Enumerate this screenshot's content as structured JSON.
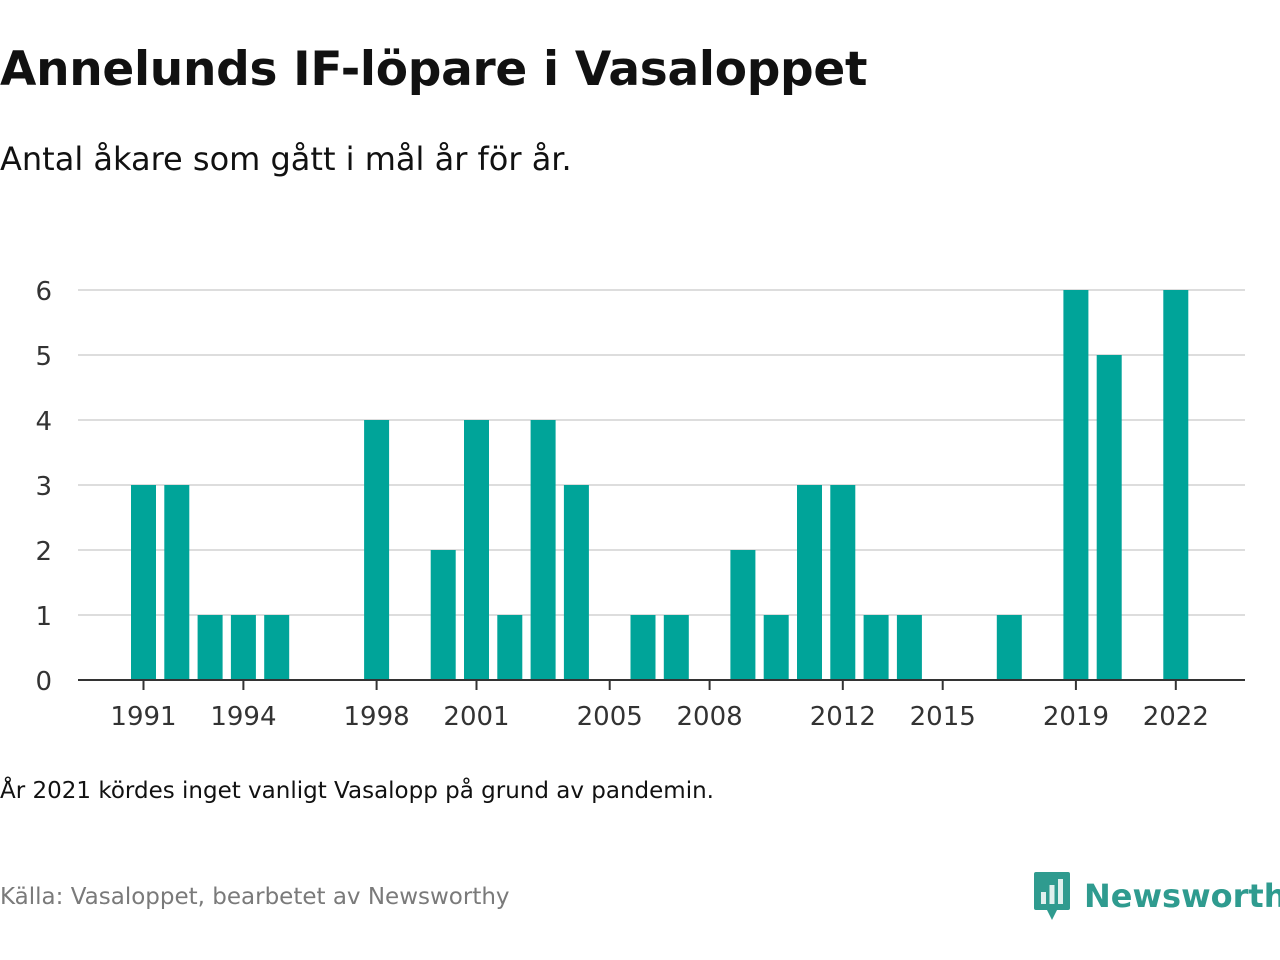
{
  "title": "Annelunds IF-löpare i Vasaloppet",
  "subtitle": "Antal åkare som gått i mål år för år.",
  "note": "År 2021 kördes inget vanligt Vasalopp på grund av pandemin.",
  "source": "Källa: Vasaloppet, bearbetet av Newsworthy",
  "brand": {
    "name": "Newsworthy",
    "icon": "newsworthy-logo-icon"
  },
  "colors": {
    "bar": "#00a499",
    "grid": "#dddddd",
    "axis": "#333333",
    "brand": "#2f9b8f"
  },
  "chart_data": {
    "type": "bar",
    "categories": [
      1991,
      1992,
      1993,
      1994,
      1995,
      1996,
      1997,
      1998,
      1999,
      2000,
      2001,
      2002,
      2003,
      2004,
      2005,
      2006,
      2007,
      2008,
      2009,
      2010,
      2011,
      2012,
      2013,
      2014,
      2015,
      2016,
      2017,
      2018,
      2019,
      2020,
      2021,
      2022
    ],
    "values": [
      3,
      3,
      1,
      1,
      1,
      0,
      0,
      4,
      0,
      2,
      4,
      1,
      4,
      3,
      0,
      1,
      1,
      0,
      2,
      1,
      3,
      3,
      1,
      1,
      0,
      0,
      1,
      0,
      6,
      5,
      0,
      6
    ],
    "x_tick_labels": [
      "1991",
      "1994",
      "1998",
      "2001",
      "2005",
      "2008",
      "2012",
      "2015",
      "2019",
      "2022"
    ],
    "y_ticks": [
      "0",
      "1",
      "2",
      "3",
      "4",
      "5",
      "6"
    ],
    "ylim": [
      0,
      6
    ],
    "grid": true,
    "legend": "none"
  }
}
